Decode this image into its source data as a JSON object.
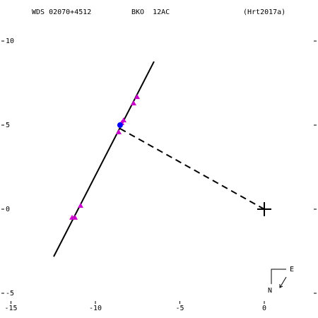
{
  "chart_data": {
    "type": "scatter",
    "annotations": [
      "WDS 02070+4512",
      "BKO  12AC",
      "(Hrt2017a)"
    ],
    "compass": {
      "east": "E",
      "north": "N"
    },
    "xlim": [
      -15.65,
      3.18
    ],
    "ylim": [
      -5.63,
      12.44
    ],
    "xticks": [
      -15,
      -10,
      -5,
      0
    ],
    "yticks": [
      10,
      5,
      0,
      -5
    ],
    "series": [
      {
        "color": "#000000",
        "line": "solid",
        "x": [
          -12.47,
          -6.53
        ],
        "values": [
          -2.82,
          8.78
        ]
      },
      {
        "color": "#000000",
        "line": "dashed",
        "x": [
          -8.54,
          0
        ],
        "values": [
          4.79,
          0
        ]
      },
      {
        "color": "#cc00cc",
        "marker": "triangle",
        "x": [
          -7.53,
          -7.74,
          -8.33,
          -8.45,
          -8.62,
          -10.88,
          -11.21,
          -11.38
        ],
        "values": [
          6.68,
          6.3,
          5.29,
          5.13,
          4.58,
          0.21,
          -0.5,
          -0.5
        ]
      },
      {
        "color": "#0000ff",
        "marker": "circle",
        "x": [
          -8.54
        ],
        "values": [
          5.0
        ]
      },
      {
        "color": "#000000",
        "marker": "plus",
        "x": [
          0
        ],
        "values": [
          0
        ]
      }
    ]
  }
}
